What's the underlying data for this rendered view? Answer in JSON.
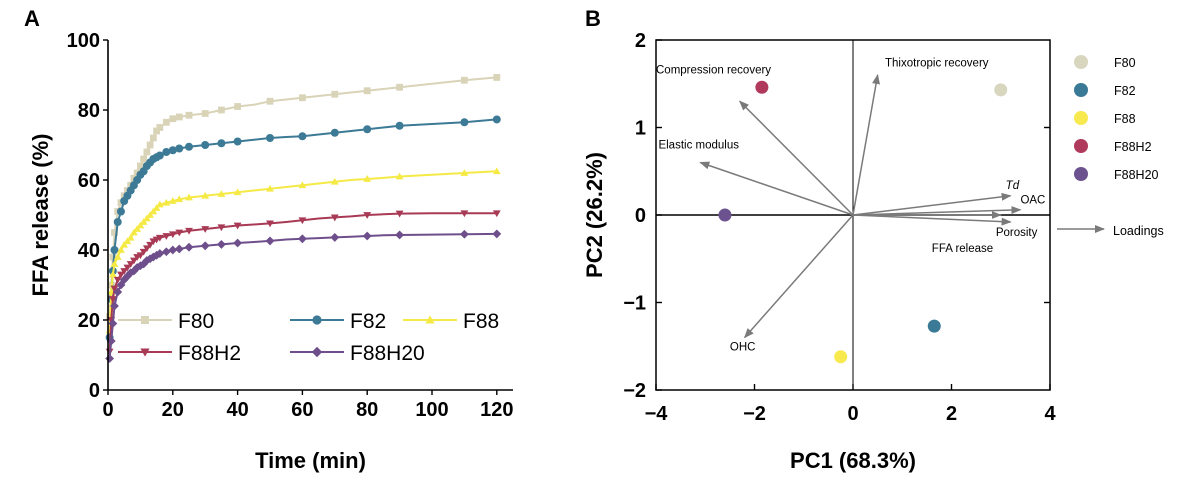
{
  "panel_a_letter": "A",
  "panel_b_letter": "B",
  "chart_data": [
    {
      "type": "line",
      "panel": "A",
      "title": "",
      "xlabel": "Time (min)",
      "ylabel": "FFA release (%)",
      "xlim": [
        0,
        125
      ],
      "ylim": [
        0,
        100
      ],
      "xticks": [
        0,
        20,
        40,
        60,
        80,
        100,
        120
      ],
      "yticks": [
        0,
        20,
        40,
        60,
        80,
        100
      ],
      "legend_position": "bottom-inside",
      "x": [
        0.5,
        1,
        1.5,
        2,
        3,
        4,
        5,
        6,
        7,
        8,
        9,
        10,
        11,
        12,
        13,
        14,
        15,
        16,
        18,
        20,
        22,
        25,
        30,
        35,
        40,
        45,
        50,
        55,
        60,
        65,
        70,
        75,
        80,
        85,
        90,
        100,
        110,
        120
      ],
      "series": [
        {
          "name": "F80",
          "color": "#d9d3b8",
          "marker": "square",
          "values": [
            21,
            30,
            38,
            45,
            51,
            53.5,
            55.5,
            57,
            58.5,
            60.5,
            62,
            64,
            66,
            68,
            70,
            72,
            74,
            75,
            76.5,
            77.5,
            78,
            78.5,
            79,
            80,
            81,
            81.5,
            82.5,
            83,
            83.5,
            84,
            84.5,
            85,
            85.5,
            86,
            86.5,
            87.5,
            88.5,
            89.3
          ]
        },
        {
          "name": "F82",
          "color": "#3c7a96",
          "marker": "circle",
          "values": [
            15,
            26,
            34,
            40,
            48,
            51,
            54,
            55.5,
            57,
            58.5,
            60,
            61.5,
            62.5,
            64,
            65,
            66,
            66.5,
            67,
            68,
            68.5,
            69,
            69.5,
            70,
            70.5,
            71,
            71.5,
            72,
            72.3,
            72.5,
            73,
            73.5,
            74,
            74.5,
            75,
            75.5,
            76,
            76.5,
            77.3
          ]
        },
        {
          "name": "F88",
          "color": "#f5ea45",
          "marker": "triangle-up",
          "values": [
            17,
            28,
            33,
            36,
            38,
            40,
            41.5,
            42.5,
            43.5,
            45,
            46,
            47,
            48,
            49,
            50,
            51,
            52,
            53,
            53.5,
            54,
            54.5,
            55,
            55.5,
            56,
            56.5,
            57,
            57.5,
            58,
            58.5,
            59,
            59.5,
            60,
            60.3,
            60.6,
            61,
            61.5,
            62,
            62.5
          ]
        },
        {
          "name": "F88H2",
          "color": "#a83a55",
          "marker": "triangle-down",
          "values": [
            11,
            20,
            26,
            29,
            31.5,
            33,
            34,
            35,
            36,
            37,
            38,
            38.5,
            39.5,
            40.5,
            41.5,
            42.5,
            43,
            43.5,
            44,
            44.5,
            45,
            45.5,
            46,
            46.5,
            47,
            47.3,
            47.6,
            48,
            48.5,
            49,
            49.3,
            49.6,
            50,
            50.2,
            50.4,
            50.5,
            50.5,
            50.5
          ]
        },
        {
          "name": "F88H20",
          "color": "#6e4f8c",
          "marker": "diamond",
          "values": [
            9,
            14,
            19,
            24,
            28,
            30,
            31.5,
            32.5,
            33.5,
            34,
            35,
            35.5,
            36,
            37,
            37.5,
            38,
            38.5,
            39,
            39.5,
            40,
            40.3,
            40.8,
            41.2,
            41.6,
            42,
            42.3,
            42.6,
            43,
            43.2,
            43.4,
            43.6,
            43.8,
            44,
            44.2,
            44.3,
            44.4,
            44.5,
            44.6
          ]
        }
      ]
    },
    {
      "type": "scatter",
      "panel": "B",
      "title": "",
      "xlabel": "PC1 (68.3%)",
      "ylabel": "PC2 (26.2%)",
      "xlim": [
        -4,
        4
      ],
      "ylim": [
        -2,
        2
      ],
      "xticks": [
        -4,
        -2,
        0,
        2,
        4
      ],
      "yticks": [
        -2,
        -1,
        0,
        1,
        2
      ],
      "tick_labels_x": [
        "−4",
        "−2",
        "0",
        "2",
        "4"
      ],
      "tick_labels_y": [
        "−2",
        "−1",
        "0",
        "1",
        "2"
      ],
      "legend_position": "right-outside",
      "points": [
        {
          "name": "F80",
          "x": 3.0,
          "y": 1.43,
          "color": "#d9d6bf"
        },
        {
          "name": "F82",
          "x": 1.65,
          "y": -1.27,
          "color": "#3a7a96"
        },
        {
          "name": "F88",
          "x": -0.25,
          "y": -1.62,
          "color": "#f8e94f"
        },
        {
          "name": "F88H2",
          "x": -1.85,
          "y": 1.46,
          "color": "#b03a5b"
        },
        {
          "name": "F88H20",
          "x": -2.6,
          "y": 0.0,
          "color": "#6c528e"
        }
      ],
      "loadings": [
        {
          "label": "Compression recovery",
          "x": -2.3,
          "y": 1.3,
          "italic": false
        },
        {
          "label": "Thixotropic recovery",
          "x": 0.5,
          "y": 1.6,
          "italic": false
        },
        {
          "label": "Elastic modulus",
          "x": -3.1,
          "y": 0.6,
          "italic": false
        },
        {
          "label": "Td",
          "x": 3.2,
          "y": 0.22,
          "italic": true
        },
        {
          "label": "OAC",
          "x": 3.4,
          "y": 0.06,
          "italic": false
        },
        {
          "label": "Porosity",
          "x": 3.2,
          "y": -0.08,
          "italic": false
        },
        {
          "label": "FFA release",
          "x": 3.0,
          "y": 0.0,
          "italic": false
        },
        {
          "label": "OHC",
          "x": -2.2,
          "y": -1.4,
          "italic": false
        }
      ],
      "loadings_legend_label": "Loadings",
      "loadings_color": "#7a7a7a"
    }
  ]
}
